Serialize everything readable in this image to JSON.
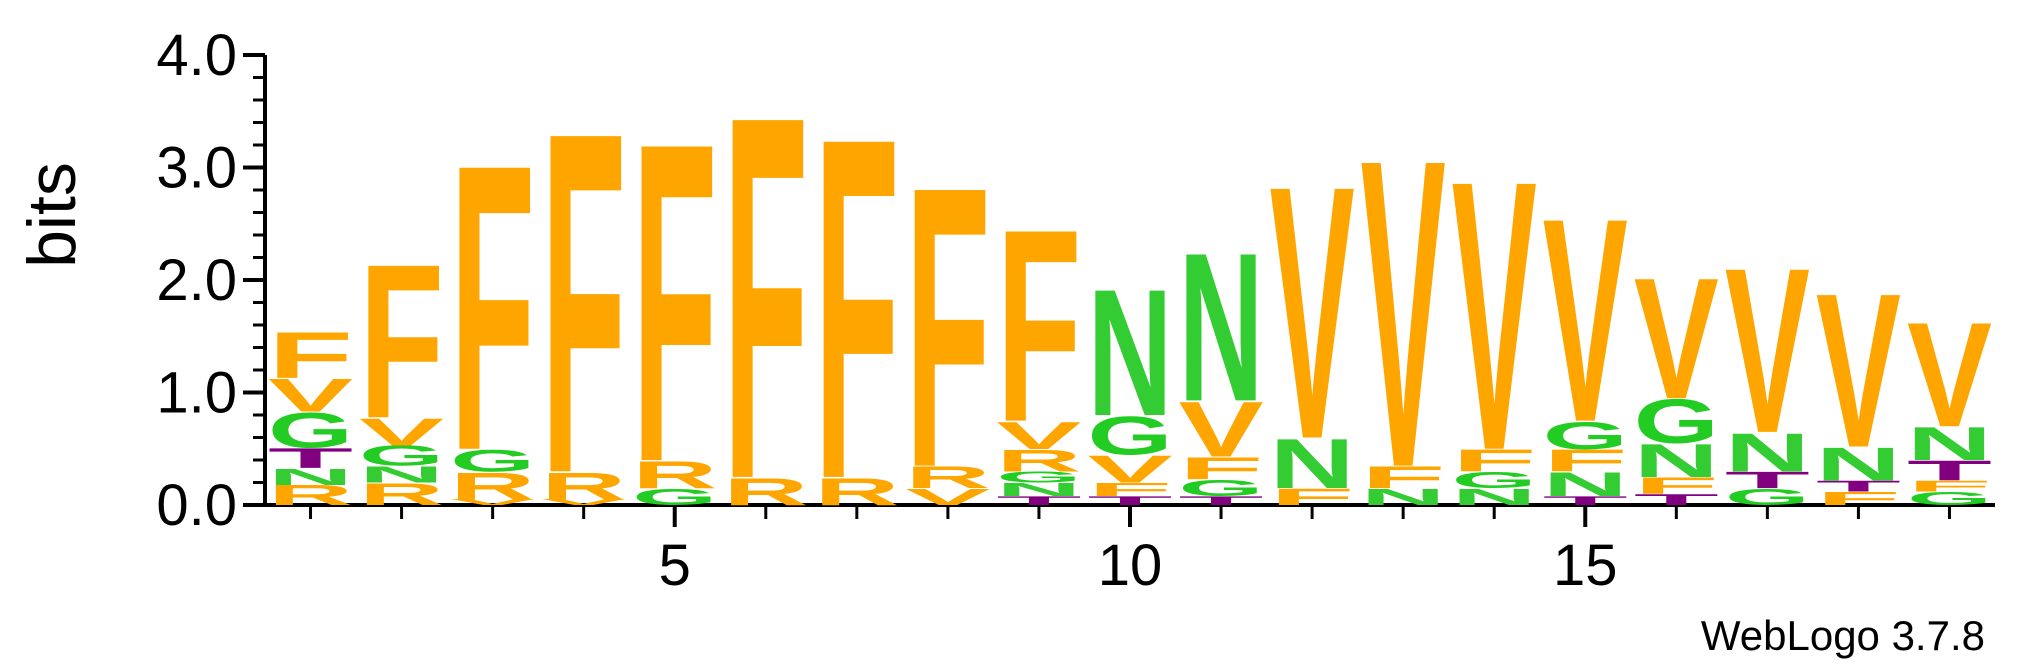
{
  "chart_data": {
    "type": "sequence-logo",
    "ylabel": "bits",
    "ylim": [
      0,
      4.0
    ],
    "yticks": [
      "0.0",
      "1.0",
      "2.0",
      "3.0",
      "4.0"
    ],
    "xlim": [
      1,
      19
    ],
    "xticks": [
      "5",
      "10",
      "15"
    ],
    "xtick_values": [
      5,
      10,
      15
    ],
    "footer": "WebLogo 3.7.8",
    "colors": {
      "F": "#ffa500",
      "V": "#ffa500",
      "R": "#ffa500",
      "G": "#22cc22",
      "N": "#33cc33",
      "T": "#800080"
    },
    "positions": [
      {
        "pos": 1,
        "stack": [
          [
            "R",
            0.18
          ],
          [
            "N",
            0.15
          ],
          [
            "T",
            0.18
          ],
          [
            "G",
            0.32
          ],
          [
            "V",
            0.3
          ],
          [
            "F",
            0.42
          ]
        ]
      },
      {
        "pos": 2,
        "stack": [
          [
            "R",
            0.2
          ],
          [
            "N",
            0.15
          ],
          [
            "G",
            0.18
          ],
          [
            "V",
            0.25
          ],
          [
            "F",
            1.4
          ]
        ]
      },
      {
        "pos": 3,
        "stack": [
          [
            "V",
            0.05
          ],
          [
            "R",
            0.25
          ],
          [
            "G",
            0.2
          ],
          [
            "F",
            2.6
          ]
        ]
      },
      {
        "pos": 4,
        "stack": [
          [
            "V",
            0.05
          ],
          [
            "R",
            0.25
          ],
          [
            "F",
            3.1
          ]
        ]
      },
      {
        "pos": 5,
        "stack": [
          [
            "G",
            0.15
          ],
          [
            "R",
            0.25
          ],
          [
            "F",
            2.9
          ]
        ]
      },
      {
        "pos": 6,
        "stack": [
          [
            "R",
            0.25
          ],
          [
            "F",
            3.3
          ]
        ]
      },
      {
        "pos": 7,
        "stack": [
          [
            "R",
            0.25
          ],
          [
            "F",
            3.1
          ]
        ]
      },
      {
        "pos": 8,
        "stack": [
          [
            "V",
            0.15
          ],
          [
            "R",
            0.2
          ],
          [
            "F",
            2.55
          ]
        ]
      },
      {
        "pos": 9,
        "stack": [
          [
            "T",
            0.08
          ],
          [
            "N",
            0.12
          ],
          [
            "G",
            0.1
          ],
          [
            "R",
            0.2
          ],
          [
            "V",
            0.25
          ],
          [
            "F",
            1.75
          ]
        ]
      },
      {
        "pos": 10,
        "stack": [
          [
            "T",
            0.08
          ],
          [
            "F",
            0.12
          ],
          [
            "V",
            0.25
          ],
          [
            "G",
            0.35
          ],
          [
            "N",
            1.15
          ]
        ]
      },
      {
        "pos": 11,
        "stack": [
          [
            "T",
            0.08
          ],
          [
            "G",
            0.15
          ],
          [
            "F",
            0.2
          ],
          [
            "V",
            0.5
          ],
          [
            "N",
            1.35
          ]
        ]
      },
      {
        "pos": 12,
        "stack": [
          [
            "F",
            0.15
          ],
          [
            "N",
            0.45
          ],
          [
            "V",
            2.3
          ]
        ]
      },
      {
        "pos": 13,
        "stack": [
          [
            "N",
            0.15
          ],
          [
            "F",
            0.2
          ],
          [
            "V",
            2.8
          ]
        ]
      },
      {
        "pos": 14,
        "stack": [
          [
            "N",
            0.15
          ],
          [
            "G",
            0.15
          ],
          [
            "F",
            0.2
          ],
          [
            "V",
            2.45
          ]
        ]
      },
      {
        "pos": 15,
        "stack": [
          [
            "T",
            0.08
          ],
          [
            "N",
            0.22
          ],
          [
            "F",
            0.2
          ],
          [
            "G",
            0.25
          ],
          [
            "V",
            1.85
          ]
        ]
      },
      {
        "pos": 16,
        "stack": [
          [
            "T",
            0.1
          ],
          [
            "F",
            0.15
          ],
          [
            "N",
            0.3
          ],
          [
            "G",
            0.4
          ],
          [
            "V",
            1.1
          ]
        ]
      },
      {
        "pos": 17,
        "stack": [
          [
            "G",
            0.15
          ],
          [
            "T",
            0.15
          ],
          [
            "N",
            0.35
          ],
          [
            "V",
            1.5
          ]
        ]
      },
      {
        "pos": 18,
        "stack": [
          [
            "F",
            0.12
          ],
          [
            "T",
            0.1
          ],
          [
            "N",
            0.3
          ],
          [
            "V",
            1.4
          ]
        ]
      },
      {
        "pos": 19,
        "stack": [
          [
            "G",
            0.12
          ],
          [
            "F",
            0.1
          ],
          [
            "T",
            0.18
          ],
          [
            "N",
            0.3
          ],
          [
            "V",
            0.95
          ]
        ]
      }
    ]
  }
}
